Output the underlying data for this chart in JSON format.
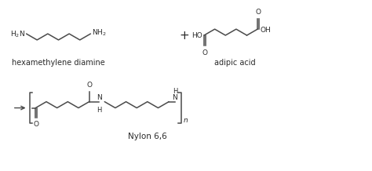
{
  "bg_color": "#ffffff",
  "line_color": "#4a4a4a",
  "text_color": "#2a2a2a",
  "title1": "hexamethylene diamine",
  "title2": "adipic acid",
  "title3": "Nylon 6,6",
  "font_size_label": 7.0,
  "font_size_chem": 6.5,
  "font_size_plus": 11
}
